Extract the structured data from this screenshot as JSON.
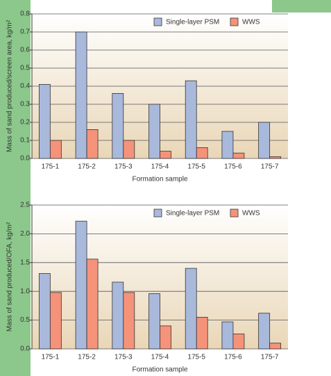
{
  "chart_data": [
    {
      "type": "bar",
      "ylabel": "Mass of sand produced/screen area, kg/m²",
      "xlabel": "Formation sample",
      "categories": [
        "175-1",
        "175-2",
        "175-3",
        "175-4",
        "175-5",
        "175-6",
        "175-7"
      ],
      "series": [
        {
          "name": "Single-layer PSM",
          "color": "#a9b9dc",
          "values": [
            0.41,
            0.7,
            0.36,
            0.3,
            0.43,
            0.15,
            0.2
          ]
        },
        {
          "name": "WWS",
          "color": "#f4937a",
          "values": [
            0.1,
            0.16,
            0.1,
            0.04,
            0.06,
            0.03,
            0.01
          ]
        }
      ],
      "ylim": [
        0,
        0.8
      ],
      "yticks": [
        {
          "value": 0,
          "label": "0.0"
        },
        0.1,
        0.2,
        0.3,
        0.4,
        0.5,
        0.6,
        0.7,
        0.8
      ],
      "grid": true,
      "legend": "top-right"
    },
    {
      "type": "bar",
      "ylabel": "Mass of sand produced/OFA, kg/m²",
      "xlabel": "Formation sample",
      "categories": [
        "175-1",
        "175-2",
        "175-3",
        "175-4",
        "175-5",
        "175-6",
        "175-7"
      ],
      "series": [
        {
          "name": "Single-layer PSM",
          "color": "#a9b9dc",
          "values": [
            1.31,
            2.22,
            1.16,
            0.96,
            1.4,
            0.47,
            0.62
          ]
        },
        {
          "name": "WWS",
          "color": "#f4937a",
          "values": [
            0.98,
            1.56,
            0.98,
            0.4,
            0.55,
            0.26,
            0.1
          ]
        }
      ],
      "ylim": [
        0,
        2.5
      ],
      "yticks": [
        {
          "value": 0,
          "label": "0.0"
        },
        0.5,
        {
          "value": 1,
          "label": "1.0"
        },
        1.5,
        {
          "value": 2,
          "label": "2.0"
        },
        2.5
      ],
      "grid": true,
      "legend": "top-right"
    }
  ]
}
